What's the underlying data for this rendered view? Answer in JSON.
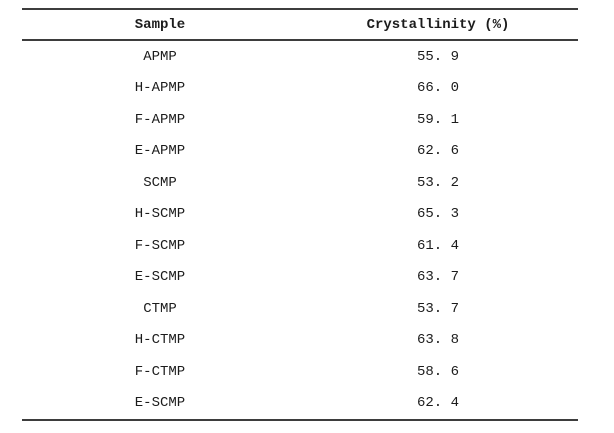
{
  "table": {
    "columns": [
      {
        "label": "Sample"
      },
      {
        "label": "Crystallinity (%)"
      }
    ],
    "rows": [
      {
        "sample": "APMP",
        "crystallinity": "55. 9"
      },
      {
        "sample": "H-APMP",
        "crystallinity": "66. 0"
      },
      {
        "sample": "F-APMP",
        "crystallinity": "59. 1"
      },
      {
        "sample": "E-APMP",
        "crystallinity": "62. 6"
      },
      {
        "sample": "SCMP",
        "crystallinity": "53. 2"
      },
      {
        "sample": "H-SCMP",
        "crystallinity": "65. 3"
      },
      {
        "sample": "F-SCMP",
        "crystallinity": "61. 4"
      },
      {
        "sample": "E-SCMP",
        "crystallinity": "63. 7"
      },
      {
        "sample": "CTMP",
        "crystallinity": "53. 7"
      },
      {
        "sample": "H-CTMP",
        "crystallinity": "63. 8"
      },
      {
        "sample": "F-CTMP",
        "crystallinity": "58. 6"
      },
      {
        "sample": "E-SCMP",
        "crystallinity": "62. 4"
      }
    ]
  },
  "chart_data": {
    "type": "table",
    "columns": [
      "Sample",
      "Crystallinity (%)"
    ],
    "rows": [
      [
        "APMP",
        55.9
      ],
      [
        "H-APMP",
        66.0
      ],
      [
        "F-APMP",
        59.1
      ],
      [
        "E-APMP",
        62.6
      ],
      [
        "SCMP",
        53.2
      ],
      [
        "H-SCMP",
        65.3
      ],
      [
        "F-SCMP",
        61.4
      ],
      [
        "E-SCMP",
        63.7
      ],
      [
        "CTMP",
        53.7
      ],
      [
        "H-CTMP",
        63.8
      ],
      [
        "F-CTMP",
        58.6
      ],
      [
        "E-SCMP",
        62.4
      ]
    ]
  },
  "colors": {
    "background": "#ffffff",
    "rule": "#3d3d3d",
    "text": "#1c1c1c"
  }
}
